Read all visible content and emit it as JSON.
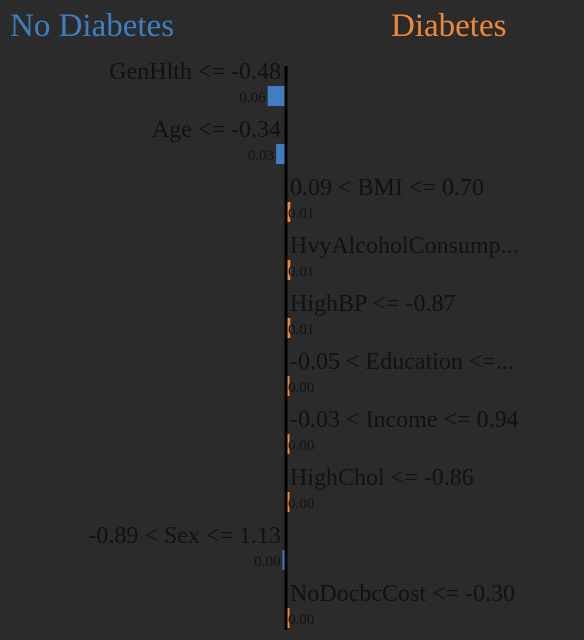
{
  "chart_data": {
    "type": "bar",
    "orientation": "horizontal",
    "classes": {
      "negative": {
        "label": "No Diabetes",
        "color": "#3f7fbf"
      },
      "positive": {
        "label": "Diabetes",
        "color": "#f0883a"
      }
    },
    "features": [
      {
        "label": "GenHlth <= -0.48",
        "value_label": "0.06",
        "value": -0.06,
        "side": "negative"
      },
      {
        "label": "Age <= -0.34",
        "value_label": "0.03",
        "value": -0.03,
        "side": "negative"
      },
      {
        "label": "0.09 < BMI <= 0.70",
        "value_label": "0.01",
        "value": 0.01,
        "side": "positive"
      },
      {
        "label": "HvyAlcoholConsump...",
        "value_label": "0.01",
        "value": 0.01,
        "side": "positive"
      },
      {
        "label": "HighBP <= -0.87",
        "value_label": "0.01",
        "value": 0.01,
        "side": "positive"
      },
      {
        "label": "-0.05 < Education <=...",
        "value_label": "0.00",
        "value": 0.0,
        "side": "positive"
      },
      {
        "label": "-0.03 < Income <= 0.94",
        "value_label": "0.00",
        "value": 0.0,
        "side": "positive"
      },
      {
        "label": "HighChol <= -0.86",
        "value_label": "0.00",
        "value": 0.0,
        "side": "positive"
      },
      {
        "label": "-0.89 < Sex <= 1.13",
        "value_label": "0.00",
        "value": 0.0,
        "side": "negative"
      },
      {
        "label": "NoDocbcCost <= -0.30",
        "value_label": "0.00",
        "value": 0.0,
        "side": "positive"
      }
    ]
  }
}
